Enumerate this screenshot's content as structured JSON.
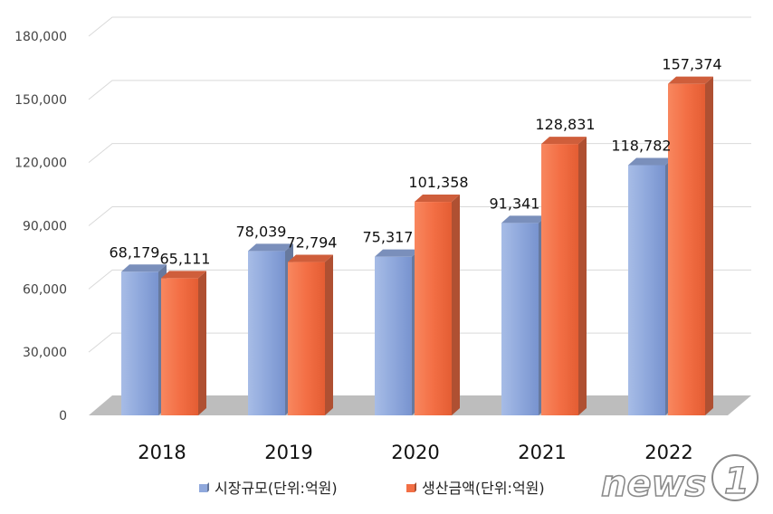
{
  "chart_data": {
    "type": "bar",
    "categories": [
      "2018",
      "2019",
      "2020",
      "2021",
      "2022"
    ],
    "series": [
      {
        "name": "시장규모(단위:억원)",
        "values": [
          68179,
          78039,
          75317,
          91341,
          118782
        ],
        "color": "#8fa8dc",
        "value_labels": [
          "68,179",
          "78,039",
          "75,317",
          "91,341",
          "118,782"
        ]
      },
      {
        "name": "생산금액(단위:억원)",
        "values": [
          65111,
          72794,
          101358,
          128831,
          157374
        ],
        "color": "#f36f45",
        "value_labels": [
          "65,111",
          "72,794",
          "101,358",
          "128,831",
          "157,374"
        ]
      }
    ],
    "y_ticks": [
      "0",
      "30,000",
      "60,000",
      "90,000",
      "120,000",
      "150,000",
      "180,000"
    ],
    "ylim": [
      0,
      180000
    ],
    "grid": true,
    "legend_position": "bottom",
    "style": "3d-column"
  },
  "watermark": {
    "text": "news",
    "badge": "1"
  }
}
